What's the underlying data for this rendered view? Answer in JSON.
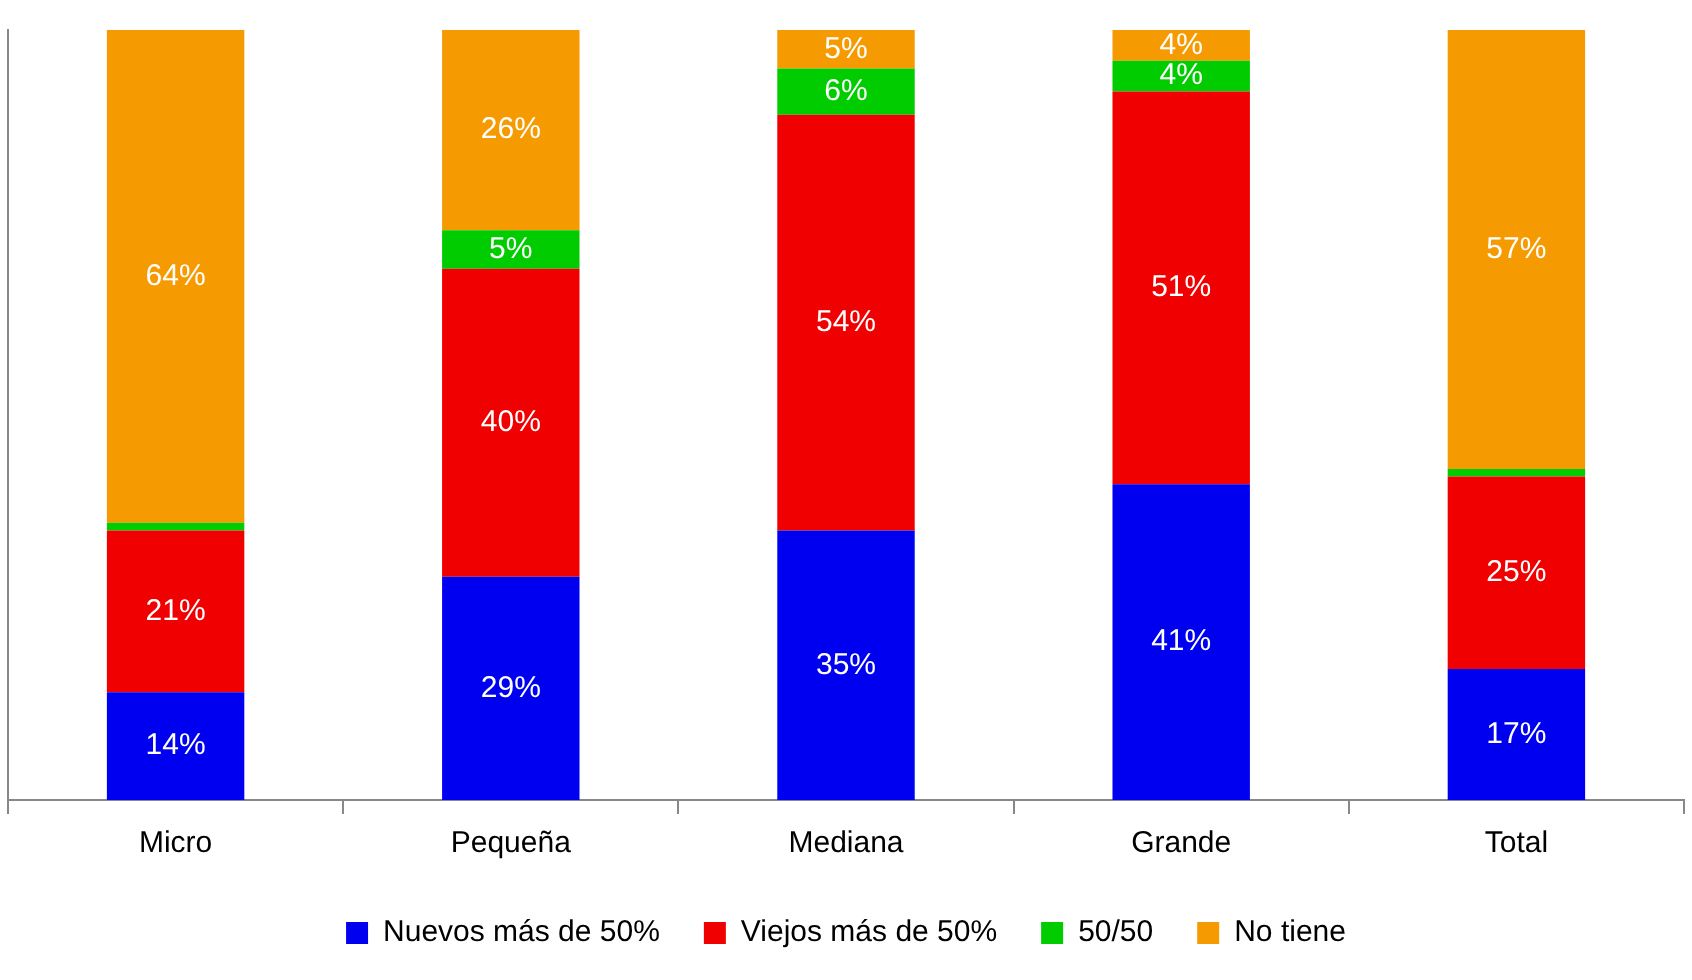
{
  "chart_data": {
    "type": "bar",
    "stacked": true,
    "categories": [
      "Micro",
      "Pequeña",
      "Mediana",
      "Grande",
      "Total"
    ],
    "series": [
      {
        "name": "Nuevos más de 50%",
        "color": "#0000f0",
        "values": [
          14,
          29,
          35,
          41,
          17
        ],
        "value_labels": [
          "14%",
          "29%",
          "35%",
          "41%",
          "17%"
        ]
      },
      {
        "name": "Viejos más de 50%",
        "color": "#f00000",
        "values": [
          21,
          40,
          54,
          51,
          25
        ],
        "value_labels": [
          "21%",
          "40%",
          "54%",
          "51%",
          "25%"
        ]
      },
      {
        "name": "50/50",
        "color": "#00cc00",
        "values": [
          1,
          5,
          6,
          4,
          1
        ],
        "value_labels": [
          null,
          "5%",
          "6%",
          "4%",
          null
        ]
      },
      {
        "name": "No tiene",
        "color": "#f59a00",
        "values": [
          64,
          26,
          5,
          4,
          57
        ],
        "value_labels": [
          "64%",
          "26%",
          "5%",
          "4%",
          "57%"
        ]
      }
    ],
    "ylim": [
      0,
      100
    ],
    "tick_labels": "x",
    "grid": false,
    "legend": "bottom"
  }
}
